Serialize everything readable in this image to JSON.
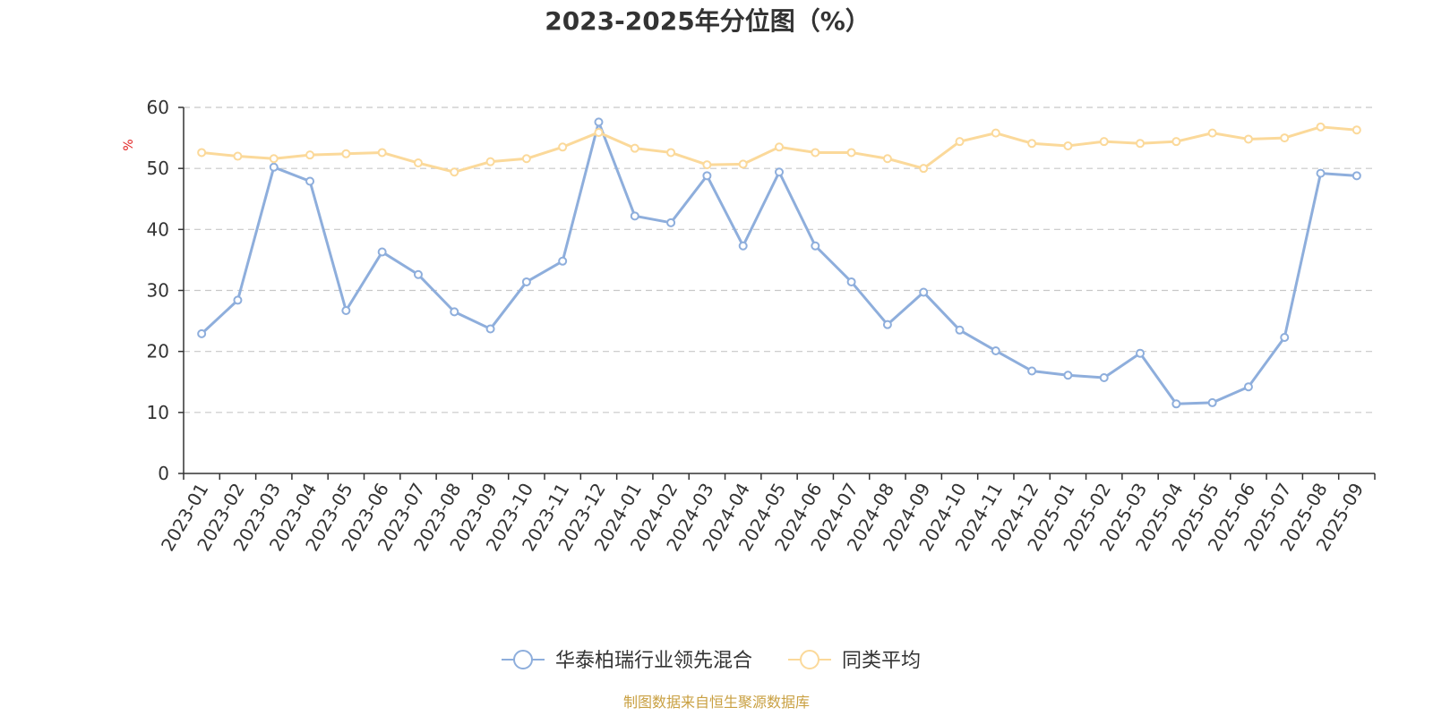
{
  "chart_data": {
    "type": "line",
    "title": "2023-2025年分位图（%）",
    "xlabel": "",
    "ylabel": "%",
    "ylim": [
      0,
      60
    ],
    "yticks": [
      0,
      10,
      20,
      30,
      40,
      50,
      60
    ],
    "grid": true,
    "legend_position": "bottom-center",
    "categories": [
      "2023-01",
      "2023-02",
      "2023-03",
      "2023-04",
      "2023-05",
      "2023-06",
      "2023-07",
      "2023-08",
      "2023-09",
      "2023-10",
      "2023-11",
      "2023-12",
      "2024-01",
      "2024-02",
      "2024-03",
      "2024-04",
      "2024-05",
      "2024-06",
      "2024-07",
      "2024-08",
      "2024-09",
      "2024-10",
      "2024-11",
      "2024-12",
      "2025-01",
      "2025-02",
      "2025-03",
      "2025-04",
      "2025-05",
      "2025-06",
      "2025-07",
      "2025-08",
      "2025-09"
    ],
    "series": [
      {
        "name": "华泰柏瑞行业领先混合",
        "color": "#8eaedc",
        "values": [
          22.9,
          28.4,
          50.2,
          47.9,
          26.7,
          36.3,
          32.6,
          26.5,
          23.7,
          31.4,
          34.8,
          57.6,
          42.2,
          41.1,
          48.8,
          37.3,
          49.4,
          37.3,
          31.4,
          24.4,
          29.7,
          23.5,
          20.1,
          16.8,
          16.1,
          15.7,
          19.7,
          11.4,
          11.6,
          14.2,
          22.3,
          49.2,
          48.8
        ]
      },
      {
        "name": "同类平均",
        "color": "#fbd99a",
        "values": [
          52.6,
          52.0,
          51.6,
          52.2,
          52.4,
          52.6,
          50.9,
          49.4,
          51.1,
          51.6,
          53.5,
          55.9,
          53.3,
          52.6,
          50.6,
          50.7,
          53.5,
          52.6,
          52.6,
          51.6,
          50.0,
          54.4,
          55.8,
          54.1,
          53.7,
          54.4,
          54.1,
          54.4,
          55.8,
          54.8,
          55.0,
          56.8,
          56.3
        ]
      }
    ]
  },
  "footer": {
    "source": "制图数据来自恒生聚源数据库",
    "source_color": "#c9a042"
  }
}
